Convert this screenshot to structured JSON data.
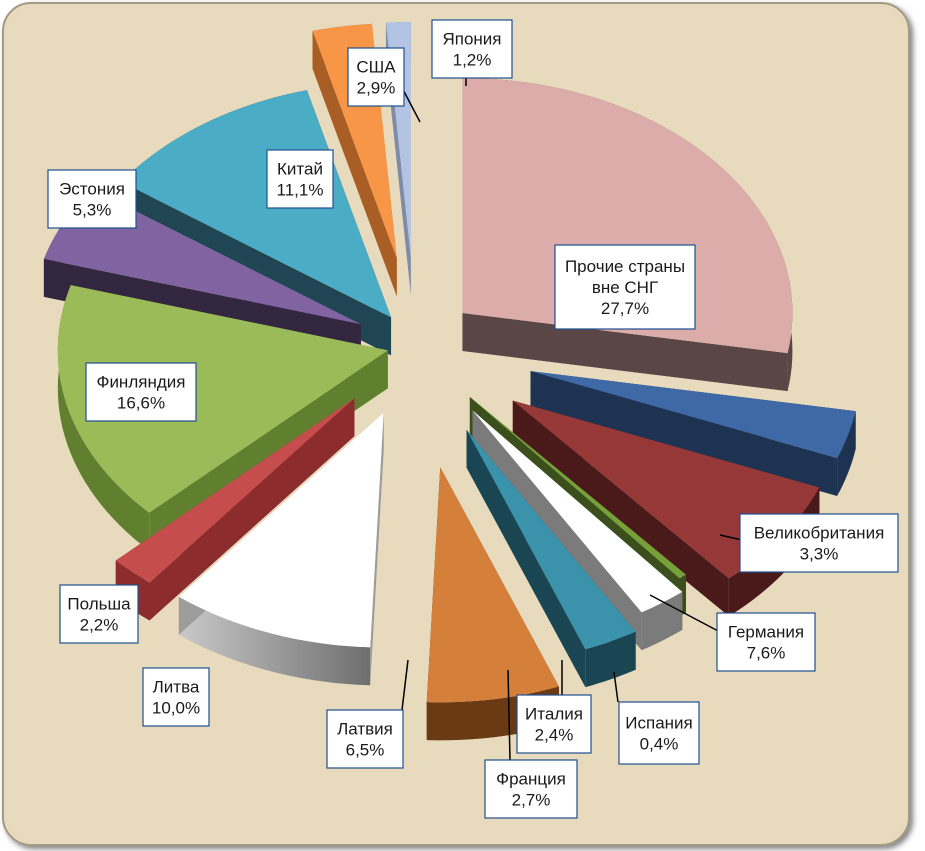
{
  "colors": {
    "panel": "#e8dbbd",
    "panel_border": "#a39a86",
    "label_box": "#ffffff",
    "label_border": "#1f4f8f",
    "leader": "#000000"
  },
  "chart_data": {
    "type": "pie",
    "title": "",
    "unit": "%",
    "exploded": true,
    "three_d": true,
    "slices": [
      {
        "label": "Прочие страны вне СНГ",
        "value_text": "27,7%",
        "value": 27.7,
        "color": "#dcacab",
        "side": "#5a4646"
      },
      {
        "label": "Великобритания",
        "value_text": "3,3%",
        "value": 3.3,
        "color": "#3f68a6",
        "side": "#1d3351"
      },
      {
        "label": "Германия",
        "value_text": "7,6%",
        "value": 7.6,
        "color": "#963838",
        "side": "#4a1a1a"
      },
      {
        "label": "Испания",
        "value_text": "0,4%",
        "value": 0.4,
        "color": "#77a03a",
        "side": "#3b4f1c"
      },
      {
        "label": "Италия",
        "value_text": "2,4%",
        "value": 2.4,
        "color": "#ffffff",
        "side": "#7b7b7b"
      },
      {
        "label": "Франция",
        "value_text": "2,7%",
        "value": 2.7,
        "color": "#3a93aa",
        "side": "#1a4553"
      },
      {
        "label": "Латвия",
        "value_text": "6,5%",
        "value": 6.5,
        "color": "#d47f3a",
        "side": "#6a3a14"
      },
      {
        "label": "Литва",
        "value_text": "10,0%",
        "value": 10.0,
        "color": "#ffffff",
        "side": "#9c9c9c"
      },
      {
        "label": "Польша",
        "value_text": "2,2%",
        "value": 2.2,
        "color": "#c54e4d",
        "side": "#8c2c2c"
      },
      {
        "label": "Финляндия",
        "value_text": "16,6%",
        "value": 16.6,
        "color": "#9bbb59",
        "side": "#61802f"
      },
      {
        "label": "Эстония",
        "value_text": "5,3%",
        "value": 5.3,
        "color": "#8064a2",
        "side": "#32273f"
      },
      {
        "label": "Китай",
        "value_text": "11,1%",
        "value": 11.1,
        "color": "#4bacc6",
        "side": "#1f4652"
      },
      {
        "label": "США",
        "value_text": "2,9%",
        "value": 2.9,
        "color": "#f79646",
        "side": "#a85e24"
      },
      {
        "label": "Япония",
        "value_text": "1,2%",
        "value": 1.2,
        "color": "#b3c3e3",
        "side": "#7f8ca8"
      }
    ]
  }
}
